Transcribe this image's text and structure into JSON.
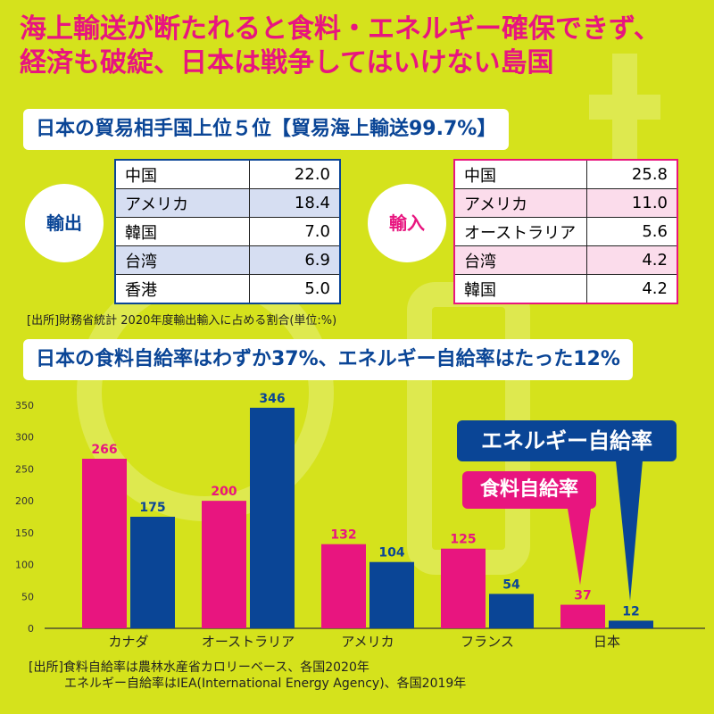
{
  "headline": {
    "line1": "海上輸送が断たれると食料・エネルギー確保できず、",
    "line2": "経済も破綻、日本は戦争してはいけない島国"
  },
  "trade": {
    "title": "日本の貿易相手国上位５位【貿易海上輸送99.7%】",
    "export_label": "輸出",
    "import_label": "輸入",
    "exports": [
      {
        "country": "中国",
        "value": "22.0"
      },
      {
        "country": "アメリカ",
        "value": "18.4"
      },
      {
        "country": "韓国",
        "value": "7.0"
      },
      {
        "country": "台湾",
        "value": "6.9"
      },
      {
        "country": "香港",
        "value": "5.0"
      }
    ],
    "imports": [
      {
        "country": "中国",
        "value": "25.8"
      },
      {
        "country": "アメリカ",
        "value": "11.0"
      },
      {
        "country": "オーストラリア",
        "value": "5.6"
      },
      {
        "country": "台湾",
        "value": "4.2"
      },
      {
        "country": "韓国",
        "value": "4.2"
      }
    ],
    "source": "[出所]財務省統計 2020年度輸出輸入に占める割合(単位:%)"
  },
  "self_sufficiency_title": "日本の食料自給率はわずか37%、エネルギー自給率はたった12%",
  "callouts": {
    "energy": "エネルギー自給率",
    "food": "食料自給率"
  },
  "chart_data": {
    "type": "bar",
    "categories": [
      "カナダ",
      "オーストラリア",
      "アメリカ",
      "フランス",
      "日本"
    ],
    "series": [
      {
        "name": "食料自給率",
        "values": [
          266,
          200,
          132,
          125,
          37
        ],
        "color": "#e8157f"
      },
      {
        "name": "エネルギー自給率",
        "values": [
          175,
          346,
          104,
          54,
          12
        ],
        "color": "#0a4596"
      }
    ],
    "yticks": [
      "0",
      "50",
      "100",
      "150",
      "200",
      "250",
      "300",
      "350"
    ],
    "ylim": [
      0,
      350
    ],
    "grid": false
  },
  "footer": {
    "line1": "[出所]食料自給率は農林水産省カロリーベース、各国2020年",
    "line2": "エネルギー自給率はIEA(International Energy Agency)、各国2019年"
  },
  "colors": {
    "background": "#d5e21c",
    "pink": "#e8157f",
    "navy": "#0a4596"
  }
}
